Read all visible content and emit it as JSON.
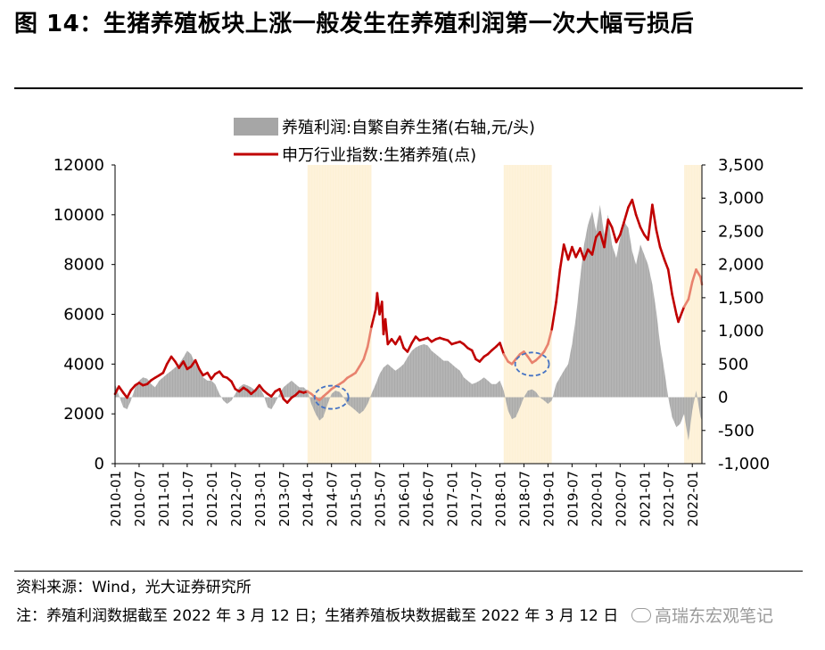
{
  "title": "图 14：生猪养殖板块上涨一般发生在养殖利润第一次大幅亏损后",
  "chart_data": {
    "type": "area+line",
    "legend": {
      "profit_label": "养殖利润:自繁自养生猪(右轴,元/头)",
      "index_label": "申万行业指数:生猪养殖(点)"
    },
    "colors": {
      "profit": "#a6a6a6",
      "index": "#c00000",
      "index_highlight": "#e8826e",
      "highlight_band": "#fdf1d6",
      "ellipse": "#4472c4"
    },
    "left_axis": {
      "min": 0,
      "max": 12000,
      "ticks": [
        "0",
        "2000",
        "4000",
        "6000",
        "8000",
        "10000",
        "12000"
      ]
    },
    "right_axis": {
      "min": -1000,
      "max": 3500,
      "ticks": [
        "-1,000",
        "-500",
        "0",
        "500",
        "1,000",
        "1,500",
        "2,000",
        "2,500",
        "3,000",
        "3,500"
      ]
    },
    "x_labels": [
      "2010-01",
      "2010-07",
      "2011-01",
      "2011-07",
      "2012-01",
      "2012-07",
      "2013-01",
      "2013-07",
      "2014-01",
      "2014-07",
      "2015-01",
      "2015-07",
      "2016-01",
      "2016-07",
      "2017-01",
      "2017-07",
      "2018-01",
      "2018-07",
      "2019-01",
      "2019-07",
      "2020-01",
      "2020-07",
      "2021-01",
      "2021-07",
      "2022-01"
    ],
    "x_range": [
      2010.0,
      2022.2
    ],
    "highlight_bands": [
      [
        2014.0,
        2015.33
      ],
      [
        2018.08,
        2019.08
      ],
      [
        2021.83,
        2022.2
      ]
    ],
    "highlight_ellipses": [
      [
        2014.5,
        0
      ],
      [
        2018.67,
        500
      ]
    ],
    "profit_series": [
      [
        2010.0,
        200
      ],
      [
        2010.08,
        30
      ],
      [
        2010.17,
        -150
      ],
      [
        2010.25,
        -180
      ],
      [
        2010.33,
        -50
      ],
      [
        2010.42,
        150
      ],
      [
        2010.5,
        250
      ],
      [
        2010.58,
        300
      ],
      [
        2010.67,
        280
      ],
      [
        2010.75,
        200
      ],
      [
        2010.83,
        150
      ],
      [
        2010.92,
        250
      ],
      [
        2011.0,
        300
      ],
      [
        2011.08,
        350
      ],
      [
        2011.17,
        400
      ],
      [
        2011.25,
        450
      ],
      [
        2011.33,
        500
      ],
      [
        2011.42,
        600
      ],
      [
        2011.5,
        700
      ],
      [
        2011.58,
        650
      ],
      [
        2011.67,
        500
      ],
      [
        2011.75,
        400
      ],
      [
        2011.83,
        300
      ],
      [
        2011.92,
        250
      ],
      [
        2012.0,
        250
      ],
      [
        2012.08,
        200
      ],
      [
        2012.17,
        50
      ],
      [
        2012.25,
        -50
      ],
      [
        2012.33,
        -100
      ],
      [
        2012.42,
        -50
      ],
      [
        2012.5,
        50
      ],
      [
        2012.58,
        150
      ],
      [
        2012.67,
        200
      ],
      [
        2012.75,
        180
      ],
      [
        2012.83,
        150
      ],
      [
        2012.92,
        100
      ],
      [
        2013.0,
        150
      ],
      [
        2013.08,
        50
      ],
      [
        2013.17,
        -150
      ],
      [
        2013.25,
        -180
      ],
      [
        2013.33,
        -80
      ],
      [
        2013.42,
        50
      ],
      [
        2013.5,
        150
      ],
      [
        2013.58,
        200
      ],
      [
        2013.67,
        250
      ],
      [
        2013.75,
        200
      ],
      [
        2013.83,
        150
      ],
      [
        2013.92,
        150
      ],
      [
        2014.0,
        100
      ],
      [
        2014.08,
        -100
      ],
      [
        2014.17,
        -250
      ],
      [
        2014.25,
        -350
      ],
      [
        2014.33,
        -300
      ],
      [
        2014.42,
        -100
      ],
      [
        2014.5,
        50
      ],
      [
        2014.58,
        100
      ],
      [
        2014.67,
        80
      ],
      [
        2014.75,
        0
      ],
      [
        2014.83,
        -100
      ],
      [
        2014.92,
        -150
      ],
      [
        2015.0,
        -200
      ],
      [
        2015.08,
        -250
      ],
      [
        2015.17,
        -200
      ],
      [
        2015.25,
        -100
      ],
      [
        2015.33,
        50
      ],
      [
        2015.42,
        200
      ],
      [
        2015.5,
        350
      ],
      [
        2015.58,
        450
      ],
      [
        2015.67,
        500
      ],
      [
        2015.75,
        450
      ],
      [
        2015.83,
        400
      ],
      [
        2015.92,
        450
      ],
      [
        2016.0,
        500
      ],
      [
        2016.08,
        600
      ],
      [
        2016.17,
        700
      ],
      [
        2016.25,
        750
      ],
      [
        2016.33,
        780
      ],
      [
        2016.42,
        800
      ],
      [
        2016.5,
        780
      ],
      [
        2016.58,
        700
      ],
      [
        2016.67,
        650
      ],
      [
        2016.75,
        600
      ],
      [
        2016.83,
        550
      ],
      [
        2016.92,
        550
      ],
      [
        2017.0,
        500
      ],
      [
        2017.08,
        450
      ],
      [
        2017.17,
        400
      ],
      [
        2017.25,
        300
      ],
      [
        2017.33,
        250
      ],
      [
        2017.42,
        200
      ],
      [
        2017.5,
        220
      ],
      [
        2017.58,
        250
      ],
      [
        2017.67,
        300
      ],
      [
        2017.75,
        250
      ],
      [
        2017.83,
        200
      ],
      [
        2017.92,
        200
      ],
      [
        2018.0,
        250
      ],
      [
        2018.08,
        100
      ],
      [
        2018.17,
        -200
      ],
      [
        2018.25,
        -330
      ],
      [
        2018.33,
        -300
      ],
      [
        2018.42,
        -150
      ],
      [
        2018.5,
        0
      ],
      [
        2018.58,
        100
      ],
      [
        2018.67,
        120
      ],
      [
        2018.75,
        80
      ],
      [
        2018.83,
        0
      ],
      [
        2018.92,
        -50
      ],
      [
        2019.0,
        -100
      ],
      [
        2019.08,
        -50
      ],
      [
        2019.17,
        200
      ],
      [
        2019.25,
        300
      ],
      [
        2019.33,
        400
      ],
      [
        2019.42,
        500
      ],
      [
        2019.5,
        800
      ],
      [
        2019.58,
        1200
      ],
      [
        2019.67,
        1800
      ],
      [
        2019.75,
        2300
      ],
      [
        2019.83,
        2600
      ],
      [
        2019.92,
        2800
      ],
      [
        2020.0,
        2500
      ],
      [
        2020.08,
        2900
      ],
      [
        2020.17,
        2450
      ],
      [
        2020.25,
        2750
      ],
      [
        2020.33,
        2300
      ],
      [
        2020.42,
        2100
      ],
      [
        2020.5,
        2400
      ],
      [
        2020.58,
        2650
      ],
      [
        2020.67,
        2550
      ],
      [
        2020.75,
        2200
      ],
      [
        2020.83,
        2000
      ],
      [
        2020.92,
        2300
      ],
      [
        2021.0,
        2150
      ],
      [
        2021.08,
        2000
      ],
      [
        2021.17,
        1700
      ],
      [
        2021.25,
        1300
      ],
      [
        2021.33,
        800
      ],
      [
        2021.42,
        400
      ],
      [
        2021.5,
        0
      ],
      [
        2021.58,
        -300
      ],
      [
        2021.67,
        -450
      ],
      [
        2021.75,
        -400
      ],
      [
        2021.83,
        -250
      ],
      [
        2021.92,
        -650
      ],
      [
        2022.0,
        -200
      ],
      [
        2022.08,
        100
      ],
      [
        2022.17,
        -300
      ],
      [
        2022.2,
        -350
      ]
    ],
    "index_series": [
      [
        2010.0,
        2800
      ],
      [
        2010.08,
        3100
      ],
      [
        2010.17,
        2850
      ],
      [
        2010.25,
        2650
      ],
      [
        2010.33,
        2950
      ],
      [
        2010.42,
        3150
      ],
      [
        2010.5,
        3250
      ],
      [
        2010.58,
        3150
      ],
      [
        2010.67,
        3200
      ],
      [
        2010.75,
        3350
      ],
      [
        2010.83,
        3450
      ],
      [
        2010.92,
        3550
      ],
      [
        2011.0,
        3650
      ],
      [
        2011.08,
        4000
      ],
      [
        2011.17,
        4300
      ],
      [
        2011.25,
        4100
      ],
      [
        2011.33,
        3850
      ],
      [
        2011.42,
        4100
      ],
      [
        2011.5,
        3800
      ],
      [
        2011.58,
        3900
      ],
      [
        2011.67,
        4150
      ],
      [
        2011.75,
        3800
      ],
      [
        2011.83,
        3550
      ],
      [
        2011.92,
        3650
      ],
      [
        2012.0,
        3400
      ],
      [
        2012.08,
        3600
      ],
      [
        2012.17,
        3700
      ],
      [
        2012.25,
        3500
      ],
      [
        2012.33,
        3450
      ],
      [
        2012.42,
        3300
      ],
      [
        2012.5,
        3000
      ],
      [
        2012.58,
        2900
      ],
      [
        2012.67,
        3050
      ],
      [
        2012.75,
        2950
      ],
      [
        2012.83,
        2800
      ],
      [
        2012.92,
        2950
      ],
      [
        2013.0,
        3150
      ],
      [
        2013.08,
        2950
      ],
      [
        2013.17,
        2800
      ],
      [
        2013.25,
        2700
      ],
      [
        2013.33,
        2900
      ],
      [
        2013.42,
        3000
      ],
      [
        2013.5,
        2600
      ],
      [
        2013.58,
        2450
      ],
      [
        2013.67,
        2650
      ],
      [
        2013.75,
        2750
      ],
      [
        2013.83,
        2900
      ],
      [
        2013.92,
        2850
      ],
      [
        2014.0,
        2900
      ],
      [
        2014.08,
        2800
      ],
      [
        2014.17,
        2650
      ],
      [
        2014.25,
        2550
      ],
      [
        2014.33,
        2700
      ],
      [
        2014.42,
        2850
      ],
      [
        2014.5,
        3000
      ],
      [
        2014.58,
        3100
      ],
      [
        2014.67,
        3200
      ],
      [
        2014.75,
        3300
      ],
      [
        2014.83,
        3450
      ],
      [
        2014.92,
        3550
      ],
      [
        2015.0,
        3650
      ],
      [
        2015.08,
        3900
      ],
      [
        2015.17,
        4200
      ],
      [
        2015.25,
        4700
      ],
      [
        2015.33,
        5500
      ],
      [
        2015.42,
        6200
      ],
      [
        2015.45,
        6850
      ],
      [
        2015.5,
        6000
      ],
      [
        2015.55,
        6500
      ],
      [
        2015.58,
        5200
      ],
      [
        2015.62,
        5800
      ],
      [
        2015.67,
        4800
      ],
      [
        2015.75,
        5000
      ],
      [
        2015.83,
        4800
      ],
      [
        2015.92,
        5100
      ],
      [
        2016.0,
        4650
      ],
      [
        2016.08,
        4500
      ],
      [
        2016.17,
        4850
      ],
      [
        2016.25,
        5100
      ],
      [
        2016.33,
        4950
      ],
      [
        2016.42,
        5000
      ],
      [
        2016.5,
        5050
      ],
      [
        2016.58,
        4900
      ],
      [
        2016.67,
        5000
      ],
      [
        2016.75,
        5050
      ],
      [
        2016.83,
        5000
      ],
      [
        2016.92,
        4950
      ],
      [
        2017.0,
        4800
      ],
      [
        2017.08,
        4850
      ],
      [
        2017.17,
        4900
      ],
      [
        2017.25,
        4800
      ],
      [
        2017.33,
        4650
      ],
      [
        2017.42,
        4550
      ],
      [
        2017.5,
        4200
      ],
      [
        2017.58,
        4100
      ],
      [
        2017.67,
        4300
      ],
      [
        2017.75,
        4400
      ],
      [
        2017.83,
        4550
      ],
      [
        2017.92,
        4700
      ],
      [
        2018.0,
        4850
      ],
      [
        2018.08,
        4400
      ],
      [
        2018.17,
        4100
      ],
      [
        2018.25,
        4000
      ],
      [
        2018.33,
        4200
      ],
      [
        2018.42,
        4400
      ],
      [
        2018.5,
        4500
      ],
      [
        2018.58,
        4300
      ],
      [
        2018.67,
        4050
      ],
      [
        2018.75,
        4150
      ],
      [
        2018.83,
        4300
      ],
      [
        2018.92,
        4500
      ],
      [
        2019.0,
        4800
      ],
      [
        2019.08,
        5400
      ],
      [
        2019.17,
        6500
      ],
      [
        2019.25,
        7800
      ],
      [
        2019.33,
        8800
      ],
      [
        2019.42,
        8200
      ],
      [
        2019.5,
        8700
      ],
      [
        2019.58,
        8300
      ],
      [
        2019.67,
        8650
      ],
      [
        2019.75,
        8200
      ],
      [
        2019.83,
        8600
      ],
      [
        2019.92,
        8400
      ],
      [
        2020.0,
        9100
      ],
      [
        2020.08,
        9300
      ],
      [
        2020.17,
        8700
      ],
      [
        2020.25,
        9800
      ],
      [
        2020.33,
        9500
      ],
      [
        2020.42,
        8900
      ],
      [
        2020.5,
        9200
      ],
      [
        2020.58,
        9700
      ],
      [
        2020.67,
        10300
      ],
      [
        2020.75,
        10600
      ],
      [
        2020.83,
        10000
      ],
      [
        2020.92,
        9500
      ],
      [
        2021.0,
        9200
      ],
      [
        2021.08,
        9000
      ],
      [
        2021.17,
        10400
      ],
      [
        2021.25,
        9400
      ],
      [
        2021.33,
        8700
      ],
      [
        2021.42,
        8200
      ],
      [
        2021.5,
        7800
      ],
      [
        2021.58,
        6800
      ],
      [
        2021.67,
        6000
      ],
      [
        2021.71,
        5700
      ],
      [
        2021.75,
        5900
      ],
      [
        2021.83,
        6300
      ],
      [
        2021.92,
        6600
      ],
      [
        2022.0,
        7300
      ],
      [
        2022.08,
        7800
      ],
      [
        2022.17,
        7500
      ],
      [
        2022.2,
        7200
      ]
    ]
  },
  "footer": {
    "source": "资料来源：Wind，光大证券研究所",
    "note": "注：养殖利润数据截至 2022 年 3 月 12 日；生猪养殖板块数据截至 2022 年 3 月 12 日",
    "watermark": "高瑞东宏观笔记"
  }
}
